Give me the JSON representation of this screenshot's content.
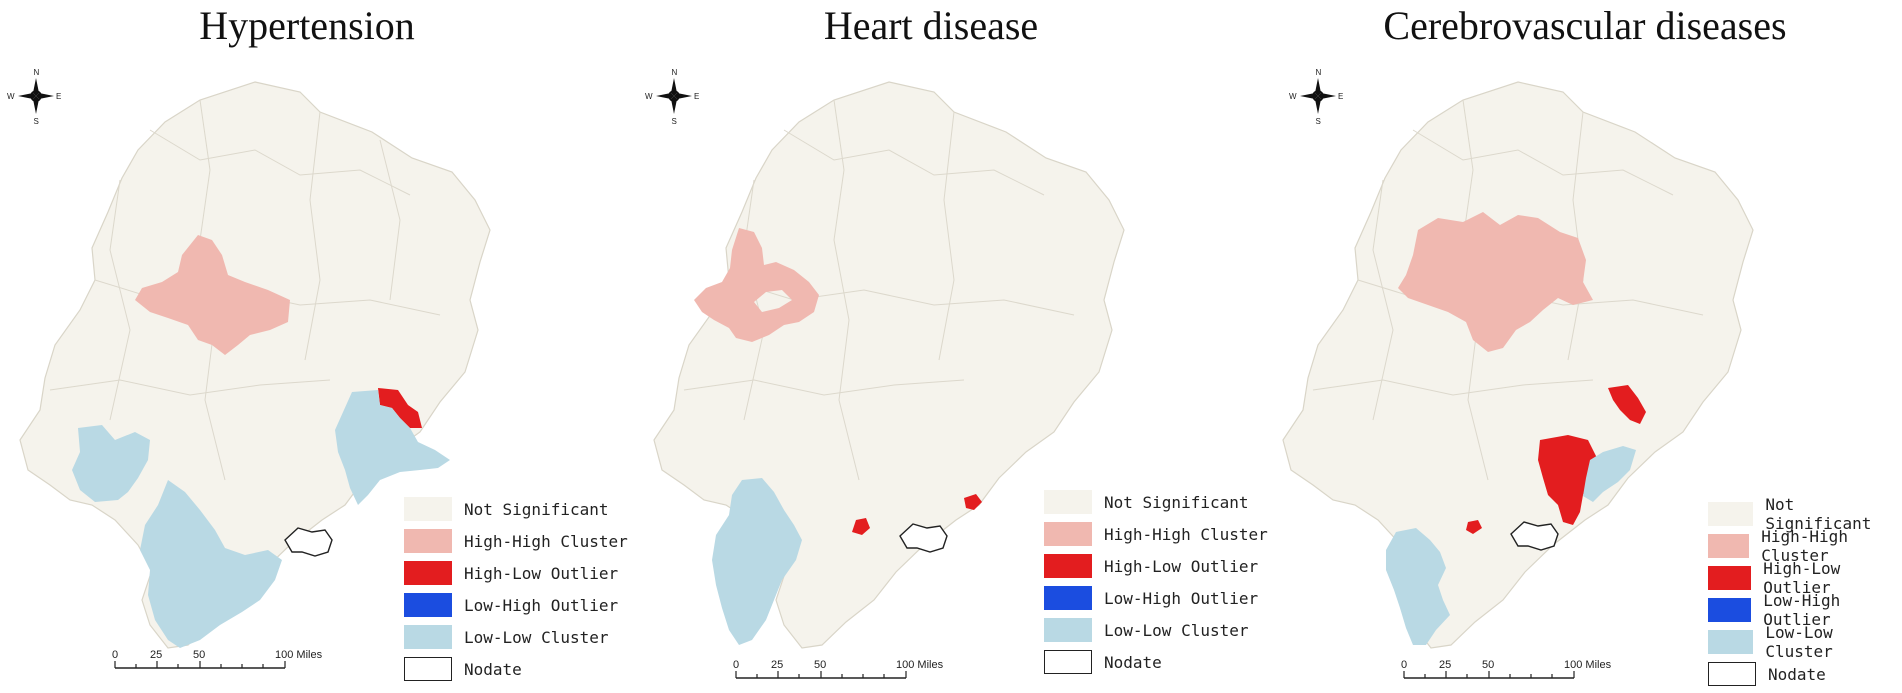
{
  "colors": {
    "not_significant": "#f5f3ec",
    "high_high": "#f0b8b0",
    "high_low": "#e31d1f",
    "low_high": "#1b4de0",
    "low_low": "#b9d9e4",
    "nodate": "#ffffff",
    "border": "#d9d5c8"
  },
  "compass": {
    "n": "N",
    "s": "S",
    "e": "E",
    "w": "W"
  },
  "legend": [
    {
      "label": "Not Significant",
      "color": "#f5f3ec"
    },
    {
      "label": "High-High Cluster",
      "color": "#f0b8b0"
    },
    {
      "label": "High-Low Outlier",
      "color": "#e31d1f"
    },
    {
      "label": "Low-High Outlier",
      "color": "#1b4de0"
    },
    {
      "label": "Low-Low Cluster",
      "color": "#b9d9e4"
    },
    {
      "label": "Nodate",
      "color": "#ffffff"
    }
  ],
  "scale_bar": {
    "ticks": [
      "0",
      "25",
      "50",
      "100 Miles"
    ]
  },
  "panels": [
    {
      "title": "Hypertension"
    },
    {
      "title": "Heart disease"
    },
    {
      "title": "Cerebrovascular diseases"
    }
  ]
}
